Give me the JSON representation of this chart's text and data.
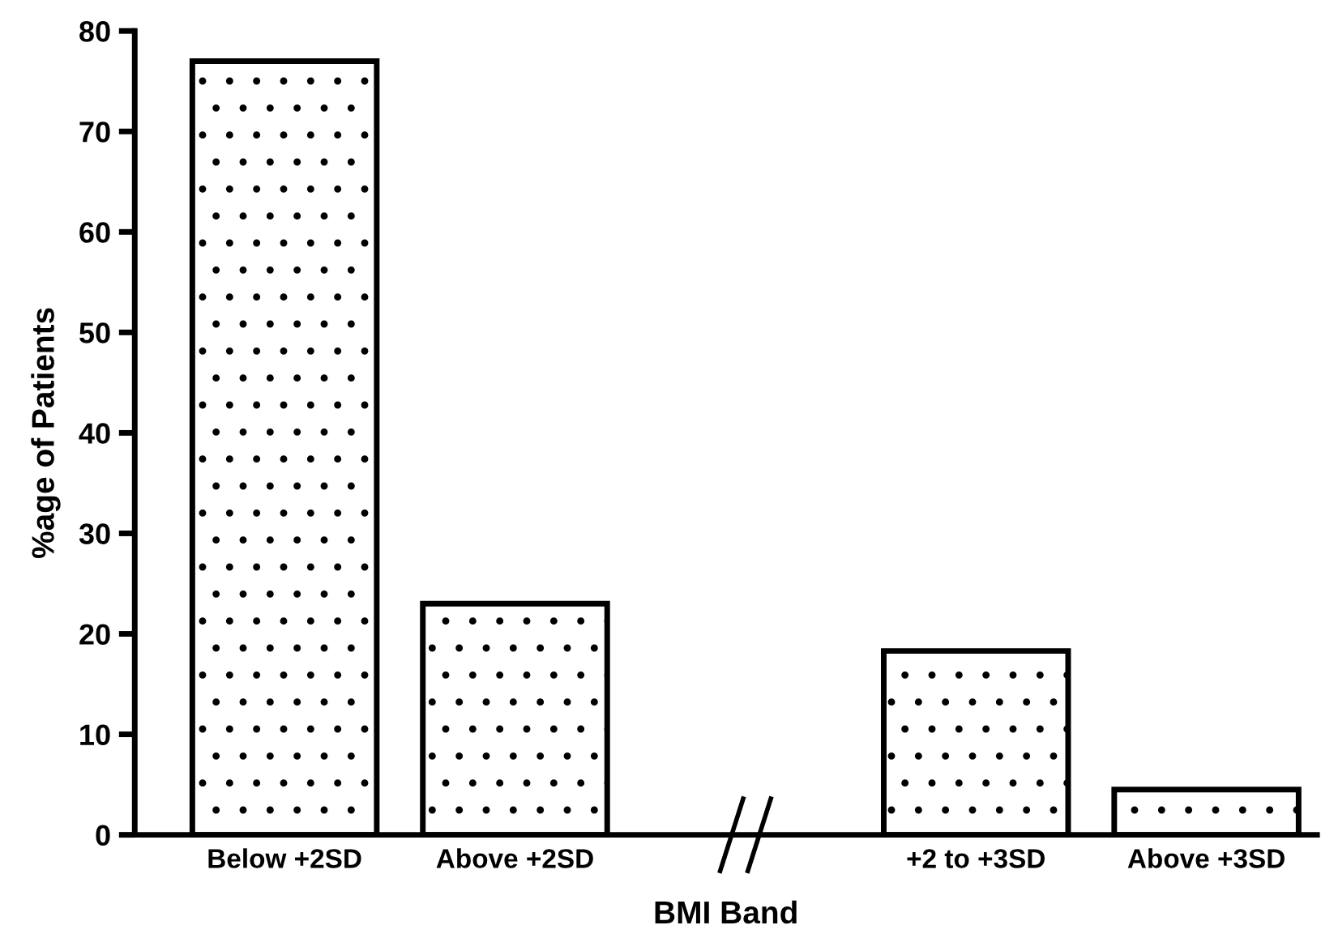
{
  "chart_data": {
    "type": "bar",
    "xlabel": "BMI Band",
    "ylabel": "%age of Patients",
    "categories": [
      "Below +2SD",
      "Above +2SD",
      null,
      "+2 to +3SD",
      "Above +3SD"
    ],
    "values": [
      77.0,
      23.0,
      null,
      18.3,
      4.5
    ],
    "color": "#000000",
    "ylim": [
      0,
      80
    ],
    "yticks": [
      0,
      10,
      20,
      30,
      40,
      50,
      60,
      70,
      80
    ],
    "grid": false
  }
}
